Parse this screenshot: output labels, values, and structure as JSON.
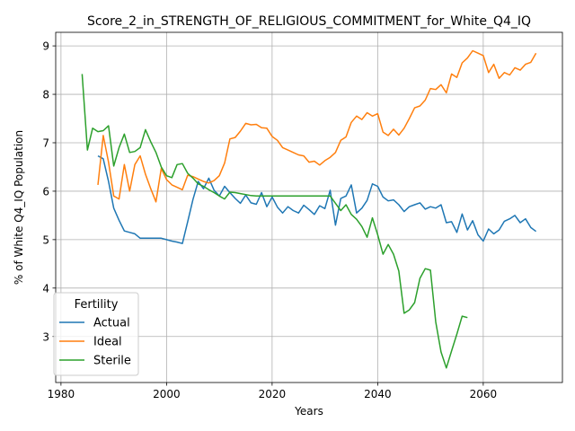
{
  "chart_data": {
    "type": "line",
    "title": "Score_2_in_STRENGTH_OF_RELIGIOUS_COMMITMENT_for_White_Q4_IQ",
    "xlabel": "Years",
    "ylabel": "% of White Q4_IQ Population",
    "xlim": [
      1979,
      2075
    ],
    "ylim": [
      2.05,
      9.28
    ],
    "xticks": [
      1980,
      2000,
      2020,
      2040,
      2060
    ],
    "yticks": [
      3,
      4,
      5,
      6,
      7,
      8,
      9
    ],
    "grid": true,
    "legend": {
      "title": "Fertility",
      "placement": "bottom-left",
      "entries": [
        "Actual",
        "Ideal",
        "Sterile"
      ]
    },
    "series": [
      {
        "name": "Actual",
        "color": "#1f77b4",
        "points": [
          [
            1987,
            6.73
          ],
          [
            1988,
            6.67
          ],
          [
            1989,
            6.2
          ],
          [
            1990,
            5.65
          ],
          [
            1991,
            5.4
          ],
          [
            1992,
            5.18
          ],
          [
            1993,
            5.15
          ],
          [
            1994,
            5.12
          ],
          [
            1995,
            5.03
          ],
          [
            1996,
            5.03
          ],
          [
            1997,
            5.03
          ],
          [
            1998,
            5.03
          ],
          [
            1999,
            5.03
          ],
          [
            2000,
            5.0
          ],
          [
            2001,
            4.97
          ],
          [
            2002,
            4.95
          ],
          [
            2003,
            4.92
          ],
          [
            2004,
            5.37
          ],
          [
            2005,
            5.83
          ],
          [
            2006,
            6.2
          ],
          [
            2007,
            6.05
          ],
          [
            2008,
            6.27
          ],
          [
            2009,
            6.02
          ],
          [
            2010,
            5.9
          ],
          [
            2011,
            6.1
          ],
          [
            2012,
            5.97
          ],
          [
            2013,
            5.85
          ],
          [
            2014,
            5.75
          ],
          [
            2015,
            5.92
          ],
          [
            2016,
            5.76
          ],
          [
            2017,
            5.73
          ],
          [
            2018,
            5.97
          ],
          [
            2019,
            5.68
          ],
          [
            2020,
            5.88
          ],
          [
            2021,
            5.67
          ],
          [
            2022,
            5.55
          ],
          [
            2023,
            5.68
          ],
          [
            2024,
            5.6
          ],
          [
            2025,
            5.55
          ],
          [
            2026,
            5.71
          ],
          [
            2027,
            5.62
          ],
          [
            2028,
            5.52
          ],
          [
            2029,
            5.7
          ],
          [
            2030,
            5.64
          ],
          [
            2031,
            6.02
          ],
          [
            2032,
            5.3
          ],
          [
            2033,
            5.85
          ],
          [
            2034,
            5.9
          ],
          [
            2035,
            6.13
          ],
          [
            2036,
            5.55
          ],
          [
            2037,
            5.65
          ],
          [
            2038,
            5.81
          ],
          [
            2039,
            6.15
          ],
          [
            2040,
            6.1
          ],
          [
            2041,
            5.88
          ],
          [
            2042,
            5.8
          ],
          [
            2043,
            5.82
          ],
          [
            2044,
            5.72
          ],
          [
            2045,
            5.58
          ],
          [
            2046,
            5.68
          ],
          [
            2047,
            5.72
          ],
          [
            2048,
            5.76
          ],
          [
            2049,
            5.63
          ],
          [
            2050,
            5.68
          ],
          [
            2051,
            5.65
          ],
          [
            2052,
            5.72
          ],
          [
            2053,
            5.35
          ],
          [
            2054,
            5.37
          ],
          [
            2055,
            5.15
          ],
          [
            2056,
            5.53
          ],
          [
            2057,
            5.2
          ],
          [
            2058,
            5.39
          ],
          [
            2059,
            5.1
          ],
          [
            2060,
            4.97
          ],
          [
            2061,
            5.22
          ],
          [
            2062,
            5.12
          ],
          [
            2063,
            5.2
          ],
          [
            2064,
            5.38
          ],
          [
            2065,
            5.43
          ],
          [
            2066,
            5.5
          ],
          [
            2067,
            5.35
          ],
          [
            2068,
            5.43
          ],
          [
            2069,
            5.25
          ],
          [
            2070,
            5.17
          ]
        ]
      },
      {
        "name": "Ideal",
        "color": "#ff7f0e",
        "points": [
          [
            1987,
            6.13
          ],
          [
            1988,
            7.15
          ],
          [
            1989,
            6.6
          ],
          [
            1990,
            5.9
          ],
          [
            1991,
            5.84
          ],
          [
            1992,
            6.55
          ],
          [
            1993,
            6.0
          ],
          [
            1994,
            6.55
          ],
          [
            1995,
            6.73
          ],
          [
            1996,
            6.35
          ],
          [
            1997,
            6.05
          ],
          [
            1998,
            5.78
          ],
          [
            1999,
            6.47
          ],
          [
            2000,
            6.24
          ],
          [
            2001,
            6.13
          ],
          [
            2002,
            6.08
          ],
          [
            2003,
            6.03
          ],
          [
            2004,
            6.33
          ],
          [
            2005,
            6.3
          ],
          [
            2006,
            6.25
          ],
          [
            2007,
            6.2
          ],
          [
            2008,
            6.17
          ],
          [
            2009,
            6.22
          ],
          [
            2010,
            6.32
          ],
          [
            2011,
            6.58
          ],
          [
            2012,
            7.08
          ],
          [
            2013,
            7.11
          ],
          [
            2014,
            7.24
          ],
          [
            2015,
            7.4
          ],
          [
            2016,
            7.37
          ],
          [
            2017,
            7.38
          ],
          [
            2018,
            7.31
          ],
          [
            2019,
            7.3
          ],
          [
            2020,
            7.13
          ],
          [
            2021,
            7.05
          ],
          [
            2022,
            6.9
          ],
          [
            2023,
            6.85
          ],
          [
            2024,
            6.8
          ],
          [
            2025,
            6.75
          ],
          [
            2026,
            6.73
          ],
          [
            2027,
            6.6
          ],
          [
            2028,
            6.62
          ],
          [
            2029,
            6.54
          ],
          [
            2030,
            6.63
          ],
          [
            2031,
            6.7
          ],
          [
            2032,
            6.8
          ],
          [
            2033,
            7.05
          ],
          [
            2034,
            7.12
          ],
          [
            2035,
            7.42
          ],
          [
            2036,
            7.55
          ],
          [
            2037,
            7.48
          ],
          [
            2038,
            7.62
          ],
          [
            2039,
            7.55
          ],
          [
            2040,
            7.6
          ],
          [
            2041,
            7.22
          ],
          [
            2042,
            7.15
          ],
          [
            2043,
            7.28
          ],
          [
            2044,
            7.16
          ],
          [
            2045,
            7.3
          ],
          [
            2046,
            7.5
          ],
          [
            2047,
            7.72
          ],
          [
            2048,
            7.76
          ],
          [
            2049,
            7.88
          ],
          [
            2050,
            8.12
          ],
          [
            2051,
            8.1
          ],
          [
            2052,
            8.2
          ],
          [
            2053,
            8.03
          ],
          [
            2054,
            8.42
          ],
          [
            2055,
            8.35
          ],
          [
            2056,
            8.65
          ],
          [
            2057,
            8.75
          ],
          [
            2058,
            8.9
          ],
          [
            2059,
            8.85
          ],
          [
            2060,
            8.8
          ],
          [
            2061,
            8.45
          ],
          [
            2062,
            8.62
          ],
          [
            2063,
            8.33
          ],
          [
            2064,
            8.45
          ],
          [
            2065,
            8.4
          ],
          [
            2066,
            8.55
          ],
          [
            2067,
            8.5
          ],
          [
            2068,
            8.62
          ],
          [
            2069,
            8.66
          ],
          [
            2070,
            8.85
          ]
        ]
      },
      {
        "name": "Sterile",
        "color": "#2ca02c",
        "points": [
          [
            1984,
            8.42
          ],
          [
            1985,
            6.85
          ],
          [
            1986,
            7.3
          ],
          [
            1987,
            7.23
          ],
          [
            1988,
            7.25
          ],
          [
            1989,
            7.35
          ],
          [
            1990,
            6.52
          ],
          [
            1991,
            6.9
          ],
          [
            1992,
            7.18
          ],
          [
            1993,
            6.8
          ],
          [
            1994,
            6.82
          ],
          [
            1995,
            6.9
          ],
          [
            1996,
            7.27
          ],
          [
            1997,
            7.02
          ],
          [
            1998,
            6.8
          ],
          [
            1999,
            6.5
          ],
          [
            2000,
            6.32
          ],
          [
            2001,
            6.28
          ],
          [
            2002,
            6.55
          ],
          [
            2003,
            6.57
          ],
          [
            2004,
            6.37
          ],
          [
            2005,
            6.27
          ],
          [
            2006,
            6.15
          ],
          [
            2007,
            6.1
          ],
          [
            2008,
            6.03
          ],
          [
            2009,
            5.97
          ],
          [
            2010,
            5.9
          ],
          [
            2011,
            5.84
          ],
          [
            2012,
            5.98
          ],
          [
            2013,
            5.97
          ],
          [
            2014,
            5.95
          ],
          [
            2015,
            5.93
          ],
          [
            2016,
            5.91
          ],
          [
            2017,
            5.9
          ],
          [
            2018,
            5.9
          ],
          [
            2019,
            5.9
          ],
          [
            2020,
            5.9
          ],
          [
            2021,
            5.9
          ],
          [
            2022,
            5.9
          ],
          [
            2023,
            5.9
          ],
          [
            2024,
            5.9
          ],
          [
            2025,
            5.9
          ],
          [
            2026,
            5.9
          ],
          [
            2027,
            5.9
          ],
          [
            2028,
            5.9
          ],
          [
            2029,
            5.9
          ],
          [
            2030,
            5.9
          ],
          [
            2031,
            5.9
          ],
          [
            2032,
            5.75
          ],
          [
            2033,
            5.6
          ],
          [
            2034,
            5.72
          ],
          [
            2035,
            5.52
          ],
          [
            2036,
            5.42
          ],
          [
            2037,
            5.27
          ],
          [
            2038,
            5.05
          ],
          [
            2039,
            5.45
          ],
          [
            2040,
            5.1
          ],
          [
            2041,
            4.7
          ],
          [
            2042,
            4.9
          ],
          [
            2043,
            4.7
          ],
          [
            2044,
            4.35
          ],
          [
            2045,
            3.48
          ],
          [
            2046,
            3.55
          ],
          [
            2047,
            3.7
          ],
          [
            2048,
            4.2
          ],
          [
            2049,
            4.4
          ],
          [
            2050,
            4.37
          ],
          [
            2051,
            3.3
          ],
          [
            2052,
            2.68
          ],
          [
            2053,
            2.35
          ],
          [
            2054,
            2.7
          ],
          [
            2055,
            3.05
          ],
          [
            2056,
            3.42
          ],
          [
            2057,
            3.39
          ]
        ]
      }
    ]
  }
}
